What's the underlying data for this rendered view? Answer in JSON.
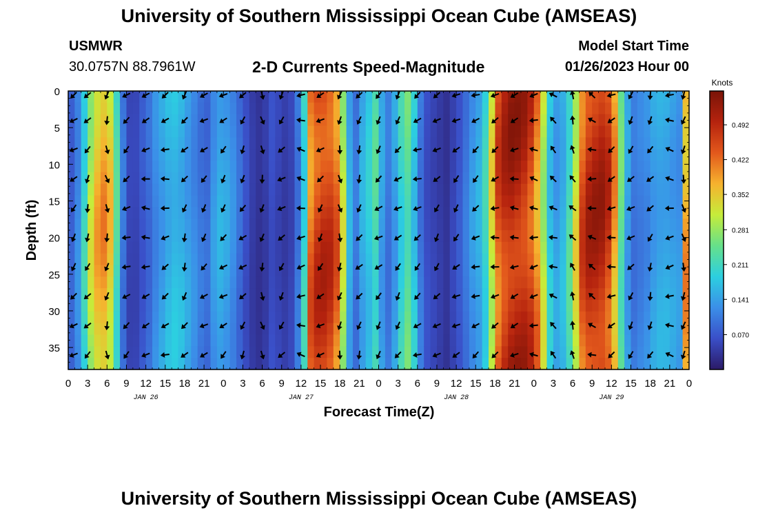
{
  "header": {
    "title": "University of Southern Mississippi Ocean Cube (AMSEAS)",
    "station": "USMWR",
    "location": "30.0757N  88.7961W",
    "plot_title": "2-D Currents Speed-Magnitude",
    "model_label": "Model Start Time",
    "model_time": "01/26/2023 Hour 00"
  },
  "footer": {
    "title": "University of Southern Mississippi Ocean Cube (AMSEAS)"
  },
  "colors": {
    "scale": [
      "#2b1a66",
      "#3a4fc8",
      "#3b8fe8",
      "#2ccfe0",
      "#66e08a",
      "#c6ec3a",
      "#f6b22e",
      "#e2581c",
      "#b5230e",
      "#7a1408"
    ]
  },
  "chart_data": {
    "type": "heatmap",
    "title": "2-D Currents Speed-Magnitude",
    "xlabel": "Forecast Time(Z)",
    "ylabel": "Depth (ft)",
    "x_ticks": [
      "0",
      "3",
      "6",
      "9",
      "12",
      "15",
      "18",
      "21",
      "0",
      "3",
      "6",
      "9",
      "12",
      "15",
      "18",
      "21",
      "0",
      "3",
      "6",
      "9",
      "12",
      "15",
      "18",
      "21",
      "0",
      "3",
      "6",
      "9",
      "12",
      "15",
      "18",
      "21",
      "0"
    ],
    "date_labels": [
      "JAN 26",
      "JAN 27",
      "JAN 28",
      "JAN 29"
    ],
    "x_range_hours": [
      0,
      96
    ],
    "y_ticks": [
      0,
      5,
      10,
      15,
      20,
      25,
      30,
      35
    ],
    "y_range_ft": [
      0,
      38
    ],
    "colorbar": {
      "unit": "Knots",
      "tick_labels": [
        "0.492",
        "0.422",
        "0.352",
        "0.281",
        "0.211",
        "0.141",
        "0.070"
      ],
      "tick_values": [
        0.492,
        0.422,
        0.352,
        0.281,
        0.211,
        0.141,
        0.07
      ],
      "range": [
        0.0,
        0.56
      ]
    },
    "speed_profile_knots": {
      "hours": [
        0,
        1,
        2,
        3,
        4,
        5,
        6,
        7,
        8,
        9,
        10,
        11,
        12,
        13,
        14,
        15,
        16,
        17,
        18,
        19,
        20,
        21,
        22,
        23,
        24,
        25,
        26,
        27,
        28,
        29,
        30,
        31,
        32,
        33,
        34,
        35,
        36,
        37,
        38,
        39,
        40,
        41,
        42,
        43,
        44,
        45,
        46,
        47,
        48,
        49,
        50,
        51,
        52,
        53,
        54,
        55,
        56,
        57,
        58,
        59,
        60,
        61,
        62,
        63,
        64,
        65,
        66,
        67,
        68,
        69,
        70,
        71,
        72,
        73,
        74,
        75,
        76,
        77,
        78,
        79,
        80,
        81,
        82,
        83,
        84,
        85,
        86,
        87,
        88,
        89,
        90,
        91,
        92,
        93,
        94,
        95,
        96
      ],
      "values": [
        0.08,
        0.12,
        0.2,
        0.3,
        0.36,
        0.38,
        0.34,
        0.22,
        0.1,
        0.05,
        0.05,
        0.07,
        0.09,
        0.12,
        0.14,
        0.16,
        0.17,
        0.16,
        0.14,
        0.12,
        0.1,
        0.09,
        0.13,
        0.15,
        0.14,
        0.12,
        0.09,
        0.06,
        0.04,
        0.03,
        0.04,
        0.06,
        0.05,
        0.04,
        0.05,
        0.1,
        0.2,
        0.42,
        0.46,
        0.47,
        0.46,
        0.42,
        0.3,
        0.15,
        0.1,
        0.15,
        0.18,
        0.22,
        0.14,
        0.1,
        0.14,
        0.2,
        0.24,
        0.18,
        0.1,
        0.06,
        0.05,
        0.04,
        0.03,
        0.05,
        0.07,
        0.1,
        0.13,
        0.15,
        0.2,
        0.32,
        0.44,
        0.48,
        0.5,
        0.5,
        0.49,
        0.46,
        0.4,
        0.3,
        0.18,
        0.14,
        0.16,
        0.22,
        0.32,
        0.44,
        0.48,
        0.49,
        0.49,
        0.46,
        0.38,
        0.24,
        0.14,
        0.1,
        0.11,
        0.12,
        0.14,
        0.15,
        0.15,
        0.14,
        0.13,
        0.38,
        0.46
      ]
    },
    "arrow_depths_ft": [
      0,
      4,
      8,
      12,
      16,
      20,
      24,
      28,
      32,
      36
    ],
    "arrow_hours": [
      0,
      3,
      6,
      9,
      12,
      15,
      18,
      21,
      24,
      27,
      30,
      33,
      36,
      39,
      42,
      45,
      48,
      51,
      54,
      57,
      60,
      63,
      66,
      69,
      72,
      75,
      78,
      81,
      84,
      87,
      90,
      93,
      96
    ],
    "arrow_directions_deg": [
      135,
      120,
      90,
      150,
      170,
      160,
      120,
      135,
      135,
      130,
      90,
      135,
      180,
      135,
      90,
      120,
      135,
      135,
      150,
      135,
      140,
      150,
      160,
      170,
      180,
      210,
      240,
      200,
      160,
      135,
      120,
      180,
      90
    ]
  }
}
